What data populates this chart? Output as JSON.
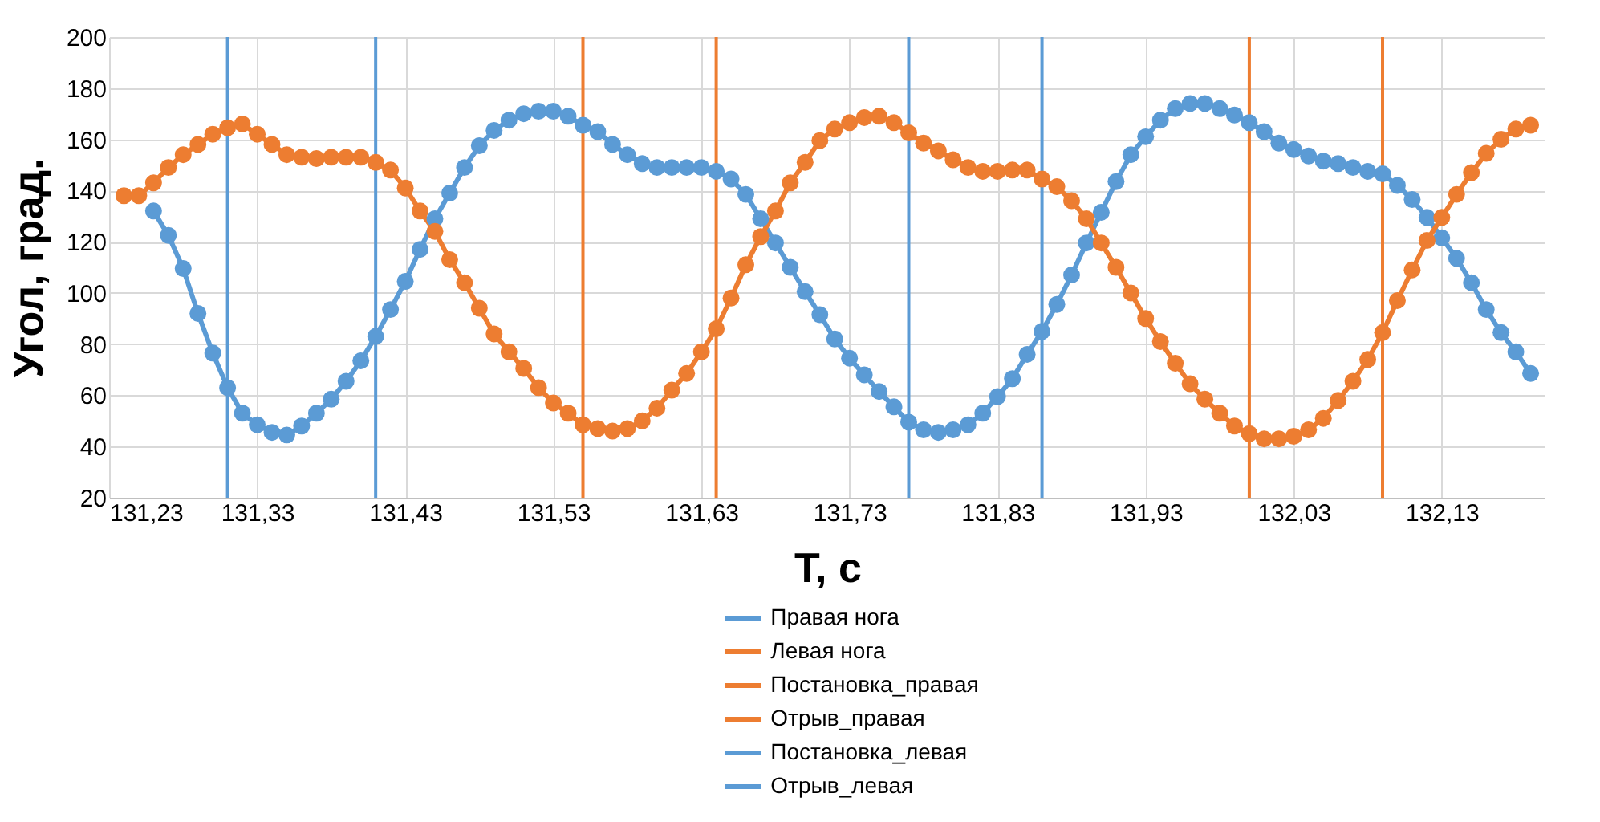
{
  "chart_data": {
    "type": "line",
    "xlabel": "T, с",
    "ylabel": "Угол, град.",
    "xlim": [
      131.23,
      132.2
    ],
    "ylim": [
      20,
      200
    ],
    "xticks": [
      {
        "value": 131.23,
        "label": "131,23"
      },
      {
        "value": 131.33,
        "label": "131,33"
      },
      {
        "value": 131.43,
        "label": "131,43"
      },
      {
        "value": 131.53,
        "label": "131,53"
      },
      {
        "value": 131.63,
        "label": "131,63"
      },
      {
        "value": 131.73,
        "label": "131,73"
      },
      {
        "value": 131.83,
        "label": "131,83"
      },
      {
        "value": 131.93,
        "label": "131,93"
      },
      {
        "value": 132.03,
        "label": "132,03"
      },
      {
        "value": 132.13,
        "label": "132,13"
      }
    ],
    "yticks": [
      20,
      40,
      60,
      80,
      100,
      120,
      140,
      160,
      180,
      200
    ],
    "grid": true,
    "legend": "bottom",
    "marker": "circle",
    "line_style": "solid",
    "series": [
      {
        "name": "Правая нога",
        "color": "#5b9bd5",
        "x": [
          131.26,
          131.27,
          131.28,
          131.29,
          131.3,
          131.31,
          131.32,
          131.33,
          131.34,
          131.35,
          131.36,
          131.37,
          131.38,
          131.39,
          131.4,
          131.41,
          131.42,
          131.43,
          131.44,
          131.45,
          131.46,
          131.47,
          131.48,
          131.49,
          131.5,
          131.51,
          131.52,
          131.53,
          131.54,
          131.55,
          131.56,
          131.57,
          131.58,
          131.59,
          131.6,
          131.61,
          131.62,
          131.63,
          131.64,
          131.65,
          131.66,
          131.67,
          131.68,
          131.69,
          131.7,
          131.71,
          131.72,
          131.73,
          131.74,
          131.75,
          131.76,
          131.77,
          131.78,
          131.79,
          131.8,
          131.81,
          131.82,
          131.83,
          131.84,
          131.85,
          131.86,
          131.87,
          131.88,
          131.89,
          131.9,
          131.91,
          131.92,
          131.93,
          131.94,
          131.95,
          131.96,
          131.97,
          131.98,
          131.99,
          132,
          132.01,
          132.02,
          132.03,
          132.04,
          132.05,
          132.06,
          132.07,
          132.08,
          132.09,
          132.1,
          132.11,
          132.12,
          132.13,
          132.14,
          132.15,
          132.16,
          132.17,
          132.18,
          132.19
        ],
        "values": [
          132,
          122.5,
          109.5,
          92,
          76.5,
          63,
          53,
          48.5,
          45.5,
          44.5,
          48,
          53,
          58.5,
          65.5,
          73.5,
          83,
          93.5,
          104.5,
          117,
          129,
          139,
          149,
          157.5,
          163.5,
          167.5,
          170,
          171,
          171,
          169,
          165.5,
          163,
          158,
          154,
          150.5,
          149,
          149,
          149,
          149,
          147.5,
          144.5,
          138.5,
          129,
          119.5,
          110,
          100.5,
          91.5,
          82,
          74.5,
          68,
          61.5,
          55.5,
          49.5,
          46.5,
          45.5,
          46.5,
          48.5,
          53,
          59.5,
          66.5,
          76,
          85,
          95.5,
          107,
          119.5,
          131.5,
          143.5,
          154,
          161,
          167.5,
          172,
          174,
          174,
          172,
          169.5,
          166.5,
          163,
          158.5,
          156,
          153.5,
          151.5,
          150.5,
          149,
          147.5,
          146.5,
          142,
          136.5,
          129.5,
          121.5,
          113.5,
          104,
          93.5,
          84.5,
          77,
          68.5
        ]
      },
      {
        "name": "Левая нога",
        "color": "#ed7d31",
        "x": [
          131.24,
          131.25,
          131.26,
          131.27,
          131.28,
          131.29,
          131.3,
          131.31,
          131.32,
          131.33,
          131.34,
          131.35,
          131.36,
          131.37,
          131.38,
          131.39,
          131.4,
          131.41,
          131.42,
          131.43,
          131.44,
          131.45,
          131.46,
          131.47,
          131.48,
          131.49,
          131.5,
          131.51,
          131.52,
          131.53,
          131.54,
          131.55,
          131.56,
          131.57,
          131.58,
          131.59,
          131.6,
          131.61,
          131.62,
          131.63,
          131.64,
          131.65,
          131.66,
          131.67,
          131.68,
          131.69,
          131.7,
          131.71,
          131.72,
          131.73,
          131.74,
          131.75,
          131.76,
          131.77,
          131.78,
          131.79,
          131.8,
          131.81,
          131.82,
          131.83,
          131.84,
          131.85,
          131.86,
          131.87,
          131.88,
          131.89,
          131.9,
          131.91,
          131.92,
          131.93,
          131.94,
          131.95,
          131.96,
          131.97,
          131.98,
          131.99,
          132,
          132.01,
          132.02,
          132.03,
          132.04,
          132.05,
          132.06,
          132.07,
          132.08,
          132.09,
          132.1,
          132.11,
          132.12,
          132.13,
          132.14,
          132.15,
          132.16,
          132.17,
          132.18,
          132.19
        ],
        "values": [
          138,
          138,
          143,
          149,
          154,
          158,
          162,
          164.5,
          166,
          162,
          158,
          154,
          153,
          152.5,
          153,
          153,
          153,
          151,
          148,
          141,
          132,
          124,
          113,
          104,
          94,
          84,
          77,
          70.5,
          63,
          57,
          53,
          48.5,
          47,
          46,
          47,
          50,
          55,
          62,
          68.5,
          77,
          86,
          98,
          111,
          122,
          132,
          143,
          151,
          159.5,
          164,
          166.5,
          168.5,
          169,
          166.5,
          162.5,
          158.5,
          155.5,
          152,
          149,
          147.5,
          147.5,
          148,
          148,
          144.5,
          141.5,
          136,
          129,
          119.5,
          110,
          100,
          90,
          81,
          72.5,
          64.5,
          58.5,
          53,
          48,
          45,
          43,
          43,
          44,
          46.5,
          51,
          58,
          65.5,
          74,
          84.5,
          97,
          109,
          120.5,
          129.5,
          138.5,
          147,
          154.5,
          160,
          164,
          165.5
        ]
      }
    ],
    "ref_lines": [
      {
        "axis": "x",
        "value": 131.55,
        "label": "Постановка_правая",
        "color": "#ed7d31",
        "line_style": "solid"
      },
      {
        "axis": "x",
        "value": 132.0,
        "color": "#ed7d31",
        "line_style": "solid"
      },
      {
        "axis": "x",
        "value": 131.64,
        "label": "Отрыв_правая",
        "color": "#ed7d31",
        "line_style": "solid"
      },
      {
        "axis": "x",
        "value": 132.09,
        "color": "#ed7d31",
        "line_style": "solid"
      },
      {
        "axis": "x",
        "value": 131.31,
        "label": "Постановка_левая",
        "color": "#5b9bd5",
        "line_style": "solid"
      },
      {
        "axis": "x",
        "value": 131.77,
        "color": "#5b9bd5",
        "line_style": "solid"
      },
      {
        "axis": "x",
        "value": 131.41,
        "label": "Отрыв_левая",
        "color": "#5b9bd5",
        "line_style": "solid"
      },
      {
        "axis": "x",
        "value": 131.86,
        "color": "#5b9bd5",
        "line_style": "solid"
      }
    ]
  }
}
